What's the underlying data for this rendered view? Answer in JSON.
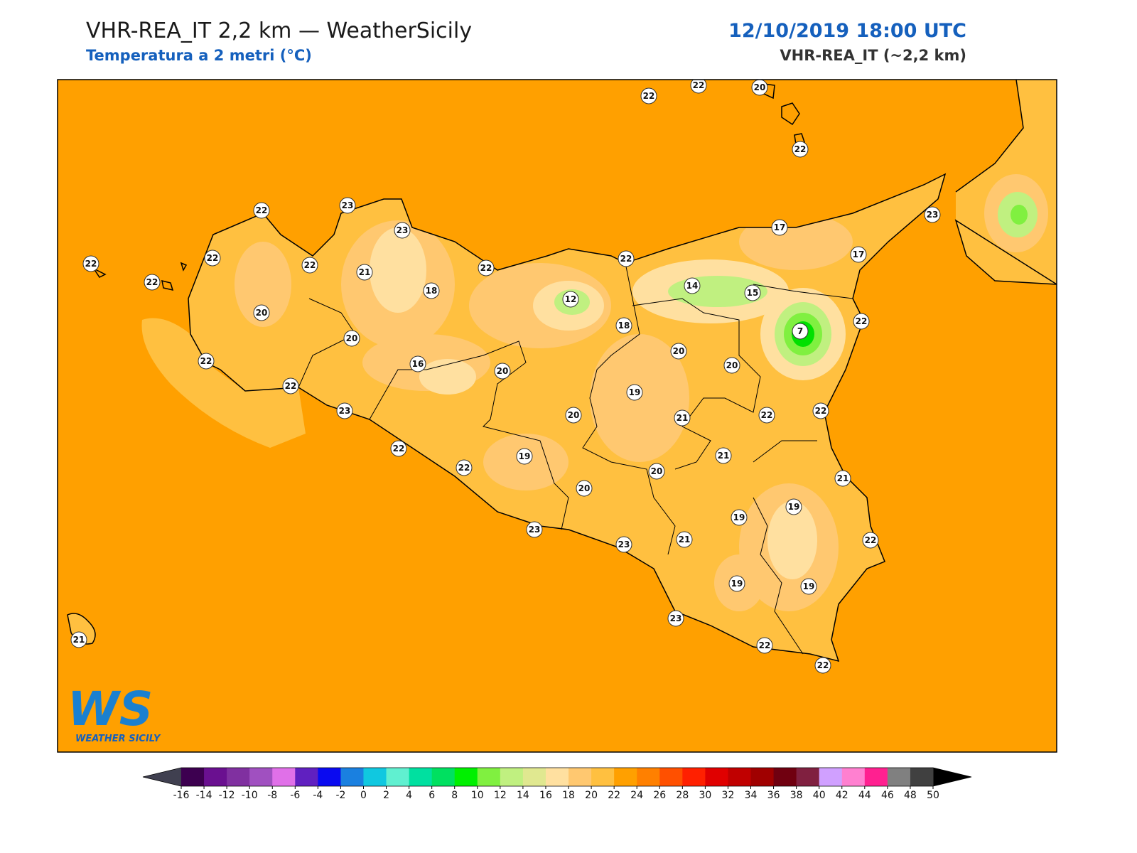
{
  "header": {
    "title": "VHR-REA_IT 2,2 km — WeatherSicily",
    "subtitle": "Temperatura a 2 metri (°C)",
    "datetime": "12/10/2019 18:00 UTC",
    "model": "VHR-REA_IT (~2,2 km)"
  },
  "stations": [
    22,
    22,
    20,
    22,
    22,
    23,
    23,
    22,
    22,
    22,
    22,
    21,
    22,
    22,
    17,
    17,
    23,
    18,
    20,
    14,
    15,
    12,
    18,
    22,
    7,
    20,
    22,
    20,
    16,
    20,
    20,
    22,
    19,
    23,
    20,
    21,
    22,
    22,
    22,
    19,
    21,
    22,
    20,
    21,
    20,
    19,
    19,
    23,
    21,
    23,
    22,
    19,
    19,
    23,
    22,
    22,
    21
  ],
  "colorbar": {
    "ticks": [
      -16,
      -14,
      -12,
      -10,
      -8,
      -6,
      -4,
      -2,
      0,
      2,
      4,
      6,
      8,
      10,
      12,
      14,
      16,
      18,
      20,
      22,
      24,
      26,
      28,
      30,
      32,
      34,
      36,
      38,
      40,
      42,
      44,
      46,
      48,
      50
    ],
    "colors": [
      "#3d0050",
      "#6a1090",
      "#8030a0",
      "#a050c0",
      "#e070e8",
      "#6020c0",
      "#0a0af0",
      "#1a80e0",
      "#10c8e0",
      "#60f0d0",
      "#00e0a0",
      "#00e060",
      "#00f000",
      "#80f040",
      "#c0f080",
      "#e0e890",
      "#ffe0a0",
      "#ffc870",
      "#ffc040",
      "#ffa000",
      "#ff8000",
      "#ff5000",
      "#ff2000",
      "#e00000",
      "#c00000",
      "#a00000",
      "#700010",
      "#802040",
      "#d0a0ff",
      "#ff80d0",
      "#ff2090",
      "#808080",
      "#404040"
    ],
    "under_color": "#404050",
    "over_color": "#000000"
  },
  "logo": {
    "mark": "WS",
    "name": "WEATHER SICILY"
  }
}
